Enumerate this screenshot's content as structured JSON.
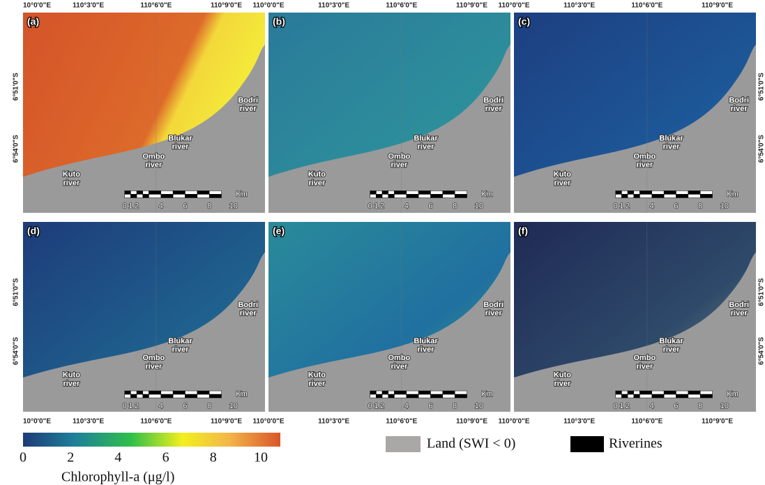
{
  "panels": [
    {
      "label": "(a)"
    },
    {
      "label": "(b)"
    },
    {
      "label": "(c)"
    },
    {
      "label": "(d)"
    },
    {
      "label": "(e)"
    },
    {
      "label": "(f)"
    }
  ],
  "lon_labels": [
    "10°0'0\"E",
    "110°3'0\"E",
    "110°6'0\"E",
    "110°9'0\"E",
    "110°0'0\"E"
  ],
  "lat_labels": [
    "6°51'0\"S",
    "6°54'0\"S"
  ],
  "rivers": [
    "Kuto\nriver",
    "Ombo\nriver",
    "Blukar\nriver",
    "Bodri\nriver"
  ],
  "scale_bar": {
    "ticks": [
      "0",
      "1",
      "2",
      "4",
      "6",
      "8",
      "10"
    ],
    "unit": "Km"
  },
  "colorbar": {
    "ticks": [
      "0",
      "2",
      "4",
      "6",
      "8",
      "10"
    ],
    "title": "Chlorophyll-a (μg/l)"
  },
  "legend": [
    {
      "label": "Land (SWI < 0)"
    },
    {
      "label": "Riverines"
    }
  ]
}
